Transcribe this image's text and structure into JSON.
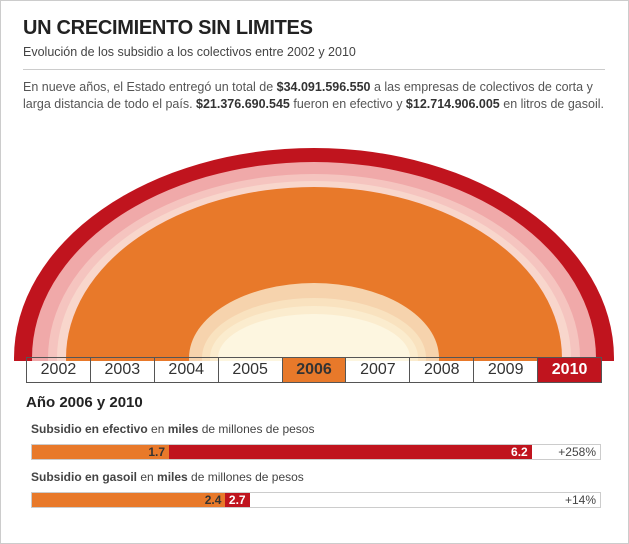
{
  "header": {
    "title": "UN CRECIMIENTO SIN LIMITES",
    "subtitle": "Evolución de los subsidio a los colectivos entre 2002 y 2010"
  },
  "intro": [
    [
      "En nueve años, el Estado entregó un total de ",
      "$34.091.596.550",
      " a las empresas de colectivos de corta y"
    ],
    [
      "larga distancia de todo el país. ",
      "$21.376.690.545",
      " fueron en efectivo y ",
      "$12.714.906.005",
      " en litros de gasoil."
    ]
  ],
  "years": [
    "2002",
    "2003",
    "2004",
    "2005",
    "2006",
    "2007",
    "2008",
    "2009",
    "2010"
  ],
  "comparison": {
    "title": "Año 2006 y 2010",
    "rows": [
      {
        "label": [
          "Subsidio en efectivo",
          " en ",
          "miles",
          " de millones de pesos"
        ],
        "value_2006": 1.7,
        "value_2010": 6.2,
        "change": "+258%"
      },
      {
        "label": [
          "Subsidio en gasoil",
          " en ",
          "miles",
          " de millones de pesos"
        ],
        "value_2006": 2.4,
        "value_2010": 2.7,
        "change": "+14%"
      }
    ]
  }
}
